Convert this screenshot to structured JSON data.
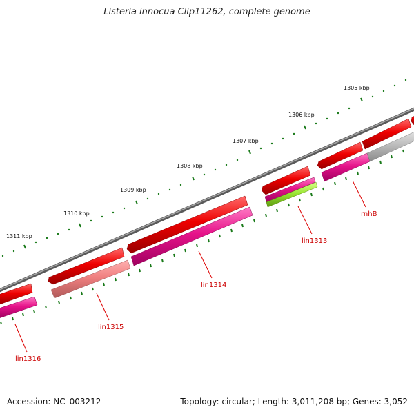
{
  "title": "Listeria innocua Clip11262, complete genome",
  "footer": {
    "accession": "Accession: NC_003212",
    "summary": "Topology: circular; Length: 3,011,208 bp; Genes: 3,052"
  },
  "colors": {
    "backbone": "#7a7a7a",
    "forward_gene": "#ee0000",
    "reverse_gene": "#e6138a",
    "pseudo_gene": "#f08080",
    "rna_gene": "#99e633",
    "other_gene": "#c0c0c0",
    "tick": "#1a7a1a",
    "label": "#cc0000"
  },
  "tick_labels": [
    "1305 kbp",
    "1306 kbp",
    "1307 kbp",
    "1308 kbp",
    "1309 kbp",
    "1310 kbp",
    "1311 kbp"
  ],
  "gene_labels": [
    "rnhB",
    "lin1313",
    "lin1314",
    "lin1315",
    "lin1316"
  ]
}
